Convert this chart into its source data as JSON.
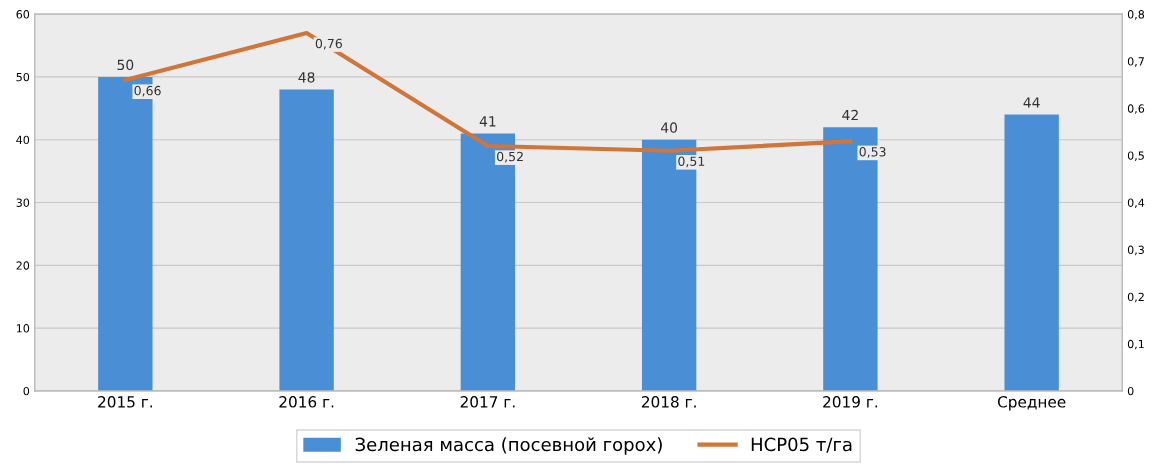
{
  "chart_data": {
    "type": "bar",
    "categories": [
      "2015 г.",
      "2016 г.",
      "2017 г.",
      "2018 г.",
      "2019 г.",
      "Среднее"
    ],
    "series": [
      {
        "name": "Зеленая масса (посевной горох)",
        "color": "#4a8fd6",
        "values": [
          50,
          48,
          41,
          40,
          42,
          44
        ],
        "value_labels": [
          "50",
          "48",
          "41",
          "40",
          "42",
          "44"
        ]
      },
      {
        "name": "НСР05 т/га",
        "type": "line",
        "axis": "y2",
        "color": "#d0763a",
        "values": [
          0.66,
          0.76,
          0.52,
          0.51,
          0.53,
          null
        ],
        "value_labels": [
          "0,66",
          "0,76",
          "0,52",
          "0,51",
          "0,53",
          null
        ]
      }
    ],
    "ylim": [
      0,
      60
    ],
    "yticks": [
      0,
      10,
      20,
      30,
      40,
      50,
      60
    ],
    "y2lim": [
      0,
      0.8
    ],
    "y2ticks": [
      {
        "value": 0,
        "label": "0"
      },
      {
        "value": 0.1,
        "label": "0,1"
      },
      {
        "value": 0.2,
        "label": "0,2"
      },
      {
        "value": 0.3,
        "label": "0,3"
      },
      {
        "value": 0.4,
        "label": "0,4"
      },
      {
        "value": 0.5,
        "label": "0,5"
      },
      {
        "value": 0.6,
        "label": "0,6"
      },
      {
        "value": 0.7,
        "label": "0,7"
      },
      {
        "value": 0.8,
        "label": "0,8"
      }
    ],
    "grid": true,
    "legend": "bottom",
    "marker": "none",
    "line_style": "solid"
  }
}
